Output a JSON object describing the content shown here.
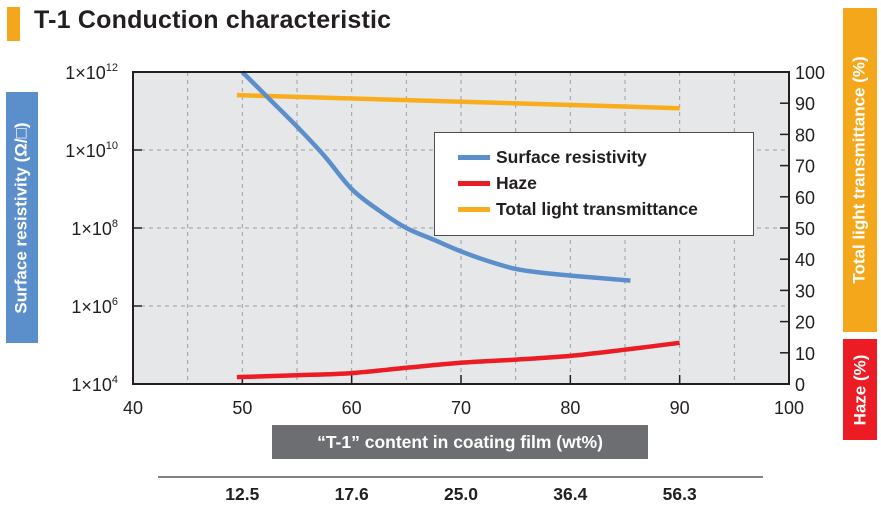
{
  "header": {
    "title": "T-1 Conduction characteristic"
  },
  "axes_labels": {
    "left": "Surface resistivity (Ω/□)",
    "right_top": "Total light transmittance (%)",
    "right_bottom": "Haze (%)",
    "x": "“T-1” content in coating film (wt%)"
  },
  "secondary_x_row": {
    "values": [
      "12.5",
      "17.6",
      "25.0",
      "36.4",
      "56.3"
    ],
    "aligned_x": [
      50,
      60,
      70,
      80,
      90
    ]
  },
  "colors": {
    "surface_resistivity": "#5b8fcb",
    "haze": "#ec1c24",
    "transmittance": "#f9ad1d",
    "plot_background": "#e6e7e8",
    "grid": "#9d9fa2"
  },
  "chart_data": {
    "type": "line",
    "title": "T-1 Conduction characteristic",
    "xlabel": "“T-1” content in coating film (wt%)",
    "xlim": [
      40,
      100
    ],
    "x_ticks": [
      40,
      50,
      60,
      70,
      80,
      90,
      100
    ],
    "x_tick_labels": [
      "40",
      "50",
      "60",
      "70",
      "80",
      "90",
      "100"
    ],
    "y_left": {
      "label": "Surface resistivity (Ω/□)",
      "scale": "log",
      "lim_exponent": [
        4,
        12
      ],
      "ticks_exponent": [
        12,
        10,
        8,
        6,
        4
      ],
      "tick_labels": [
        {
          "base": "1×10",
          "exp": "12"
        },
        {
          "base": "1×10",
          "exp": "10"
        },
        {
          "base": "1×10",
          "exp": "8"
        },
        {
          "base": "1×10",
          "exp": "6"
        },
        {
          "base": "1×10",
          "exp": "4"
        }
      ]
    },
    "y_right": {
      "label_top": "Total light transmittance (%)",
      "label_bottom": "Haze (%)",
      "lim": [
        0,
        100
      ],
      "ticks": [
        0,
        10,
        20,
        30,
        40,
        50,
        60,
        70,
        80,
        90,
        100
      ],
      "tick_labels": [
        "0",
        "10",
        "20",
        "30",
        "40",
        "50",
        "60",
        "70",
        "80",
        "90",
        "100"
      ]
    },
    "grid": true,
    "legend_position": "upper-right-center",
    "series": [
      {
        "name": "Surface resistivity",
        "axis": "left-log",
        "color": "#5b8fcb",
        "x": [
          50,
          52.5,
          55,
          57.5,
          60,
          62.5,
          65,
          67.5,
          70,
          72.5,
          75,
          77.5,
          80,
          82.5,
          85.5
        ],
        "log10_y": [
          12.0,
          11.3,
          10.6,
          9.85,
          9.0,
          8.45,
          8.0,
          7.7,
          7.4,
          7.15,
          6.95,
          6.85,
          6.78,
          6.72,
          6.65
        ]
      },
      {
        "name": "Haze",
        "axis": "right",
        "color": "#ec1c24",
        "x": [
          49.5,
          55,
          60,
          65,
          70,
          75,
          80,
          85,
          90
        ],
        "y": [
          2.2,
          2.8,
          3.5,
          5.2,
          6.8,
          7.8,
          9.0,
          11.0,
          13.2
        ]
      },
      {
        "name": "Total light transmittance",
        "axis": "right",
        "color": "#f9ad1d",
        "x": [
          49.5,
          90
        ],
        "y": [
          92.6,
          88.4
        ]
      }
    ]
  }
}
